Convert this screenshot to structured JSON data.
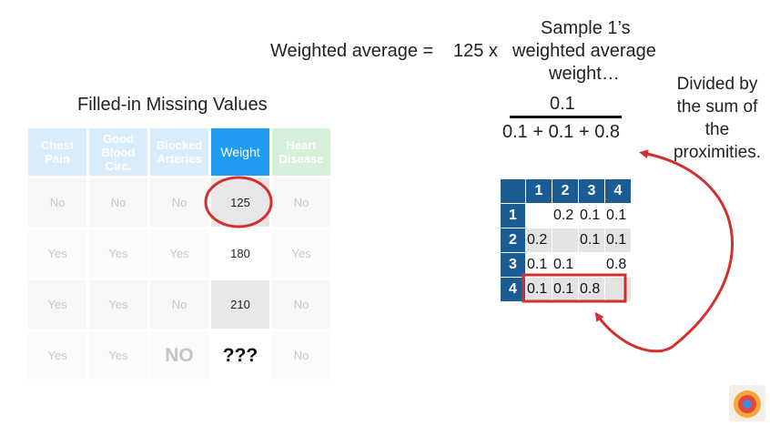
{
  "formula": {
    "label_left": "Weighted average =",
    "multiplier": "125 x",
    "sample_line": "Sample 1’s",
    "weighted_line": "weighted average",
    "weight_line": "weight…",
    "numerator": "0.1",
    "denominator": "0.1 + 0.1 + 0.8"
  },
  "side_note": [
    "Divided by",
    "the sum of",
    "the",
    "proximities."
  ],
  "table": {
    "title": "Filled-in Missing Values",
    "headers": [
      [
        "Chest",
        "Pain"
      ],
      [
        "Good",
        "Blood",
        "Circ."
      ],
      [
        "Blocked",
        "Arteries"
      ],
      [
        "Weight"
      ],
      [
        "Heart",
        "Disease"
      ]
    ],
    "rows": [
      [
        "No",
        "No",
        "No",
        "125",
        "No"
      ],
      [
        "Yes",
        "Yes",
        "Yes",
        "180",
        "Yes"
      ],
      [
        "Yes",
        "Yes",
        "No",
        "210",
        "No"
      ],
      [
        "Yes",
        "Yes",
        "NO",
        "???",
        "No"
      ]
    ]
  },
  "proximity": {
    "col_headers": [
      "1",
      "2",
      "3",
      "4"
    ],
    "row_headers": [
      "1",
      "2",
      "3",
      "4"
    ],
    "cells": [
      [
        "",
        "0.2",
        "0.1",
        "0.1"
      ],
      [
        "0.2",
        "",
        "0.1",
        "0.1"
      ],
      [
        "0.1",
        "0.1",
        "",
        "0.8"
      ],
      [
        "0.1",
        "0.1",
        "0.8",
        ""
      ]
    ]
  },
  "colors": {
    "highlight": "#d32f2f",
    "weight_header": "#1f9bf0",
    "prox_header": "#1b5c95"
  }
}
